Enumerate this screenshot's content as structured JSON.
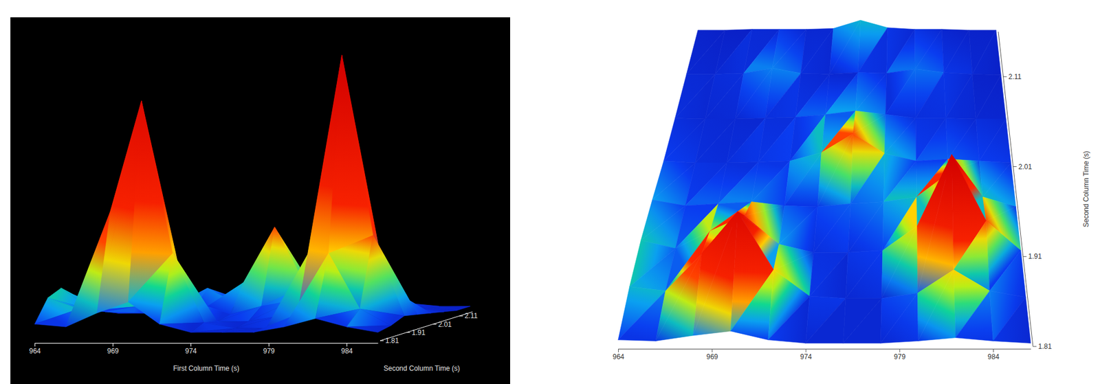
{
  "chart_data": [
    {
      "type": "surface",
      "xlabel": "First Column Time (s)",
      "ylabel": "Second Column Time (s)",
      "x": [
        964,
        966,
        968,
        970,
        972,
        974,
        976,
        978,
        980,
        982,
        984,
        986
      ],
      "y": [
        1.81,
        1.86,
        1.91,
        1.96,
        2.01,
        2.06,
        2.11,
        2.16
      ],
      "z": [
        [
          6,
          5,
          10,
          14,
          6,
          3,
          3,
          3,
          5,
          8,
          5,
          3
        ],
        [
          14,
          10,
          45,
          85,
          30,
          5,
          3,
          3,
          8,
          30,
          10,
          4
        ],
        [
          16,
          8,
          25,
          40,
          12,
          4,
          4,
          6,
          30,
          100,
          35,
          6
        ],
        [
          12,
          6,
          8,
          10,
          6,
          5,
          8,
          10,
          15,
          40,
          15,
          5
        ],
        [
          6,
          4,
          4,
          5,
          6,
          15,
          35,
          14,
          6,
          8,
          6,
          4
        ],
        [
          4,
          3,
          3,
          4,
          5,
          8,
          12,
          8,
          4,
          4,
          3,
          3
        ],
        [
          3,
          3,
          4,
          10,
          4,
          3,
          5,
          4,
          9,
          5,
          3,
          2
        ],
        [
          2,
          2,
          3,
          3,
          3,
          4,
          14,
          5,
          3,
          3,
          2,
          2
        ]
      ],
      "xlim": [
        964,
        986
      ],
      "ylim": [
        1.81,
        2.16
      ],
      "zlim": [
        0,
        100
      ],
      "xticks": [
        964,
        969,
        974,
        979,
        984
      ],
      "yticks": [
        1.81,
        1.91,
        2.01,
        2.11
      ]
    },
    {
      "type": "surface",
      "ylabel": "Second Column Time (s)",
      "x": [
        964,
        966,
        968,
        970,
        972,
        974,
        976,
        978,
        980,
        982,
        984,
        986
      ],
      "y": [
        1.81,
        1.86,
        1.91,
        1.96,
        2.01,
        2.06,
        2.11,
        2.16
      ],
      "z": [
        [
          6,
          5,
          10,
          14,
          6,
          3,
          3,
          3,
          5,
          8,
          5,
          3
        ],
        [
          14,
          10,
          45,
          85,
          30,
          5,
          3,
          3,
          8,
          30,
          10,
          4
        ],
        [
          16,
          8,
          25,
          40,
          12,
          4,
          4,
          6,
          30,
          100,
          35,
          6
        ],
        [
          12,
          6,
          8,
          10,
          6,
          5,
          8,
          10,
          15,
          40,
          15,
          5
        ],
        [
          6,
          4,
          4,
          5,
          6,
          15,
          35,
          14,
          6,
          8,
          6,
          4
        ],
        [
          4,
          3,
          3,
          4,
          5,
          8,
          12,
          8,
          4,
          4,
          3,
          3
        ],
        [
          3,
          3,
          4,
          10,
          4,
          3,
          5,
          4,
          9,
          5,
          3,
          2
        ],
        [
          2,
          2,
          3,
          3,
          3,
          4,
          14,
          5,
          3,
          3,
          2,
          2
        ]
      ],
      "xlim": [
        964,
        986
      ],
      "ylim": [
        1.81,
        2.16
      ],
      "zlim": [
        0,
        100
      ],
      "xticks": [
        964,
        969,
        974,
        979,
        984
      ],
      "yticks": [
        1.81,
        1.91,
        2.01,
        2.11
      ]
    }
  ]
}
